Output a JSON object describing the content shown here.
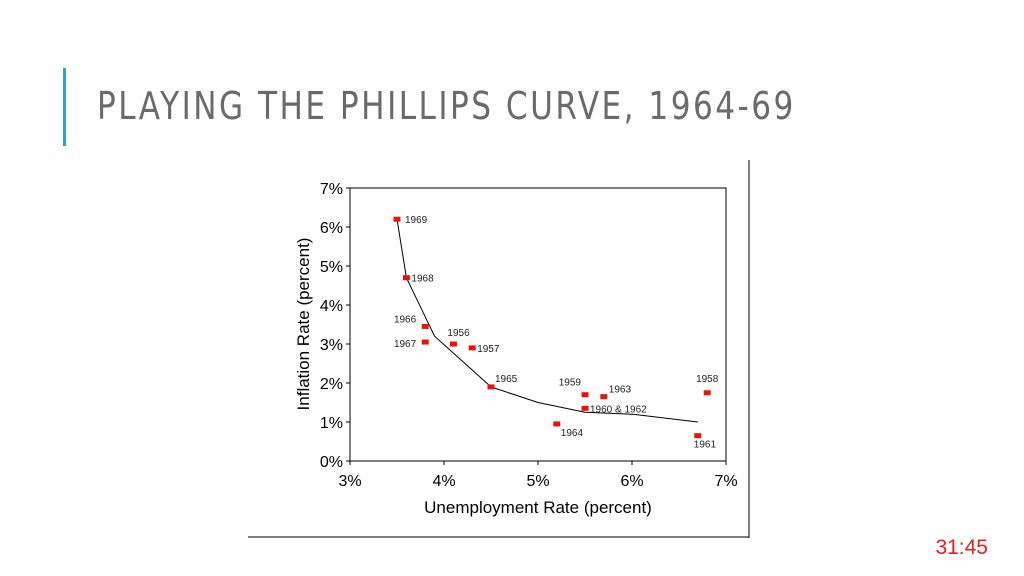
{
  "slide": {
    "title": "PLAYING THE PHILLIPS CURVE, 1964-69",
    "slide_number": "31:45",
    "accent_color": "#2ea3c6",
    "title_color": "#6a6a6a",
    "slide_number_color": "#e0201b"
  },
  "chart_data": {
    "type": "scatter",
    "xlabel": "Unemployment Rate (percent)",
    "ylabel": "Inflation Rate (percent)",
    "xlim": [
      3,
      7
    ],
    "ylim": [
      0,
      7
    ],
    "x_ticks": [
      "3%",
      "4%",
      "5%",
      "6%",
      "7%"
    ],
    "y_ticks": [
      "0%",
      "1%",
      "2%",
      "3%",
      "4%",
      "5%",
      "6%",
      "7%"
    ],
    "grid": false,
    "marker_color": "#e8140c",
    "curve_color": "#000000",
    "points": [
      {
        "label": "1969",
        "x": 3.5,
        "y": 6.2
      },
      {
        "label": "1968",
        "x": 3.6,
        "y": 4.7
      },
      {
        "label": "1966",
        "x": 3.8,
        "y": 3.45
      },
      {
        "label": "1967",
        "x": 3.8,
        "y": 3.05
      },
      {
        "label": "1956",
        "x": 4.1,
        "y": 3.0
      },
      {
        "label": "1957",
        "x": 4.3,
        "y": 2.9
      },
      {
        "label": "1965",
        "x": 4.5,
        "y": 1.9
      },
      {
        "label": "1959",
        "x": 5.5,
        "y": 1.7
      },
      {
        "label": "1963",
        "x": 5.7,
        "y": 1.65
      },
      {
        "label": "1958",
        "x": 6.8,
        "y": 1.75
      },
      {
        "label": "1960 & 1962",
        "x": 5.5,
        "y": 1.35
      },
      {
        "label": "1964",
        "x": 5.2,
        "y": 0.95
      },
      {
        "label": "1961",
        "x": 6.7,
        "y": 0.65
      }
    ],
    "curve": [
      {
        "x": 3.5,
        "y": 6.2
      },
      {
        "x": 3.6,
        "y": 4.7
      },
      {
        "x": 3.9,
        "y": 3.2
      },
      {
        "x": 4.5,
        "y": 1.9
      },
      {
        "x": 5.0,
        "y": 1.5
      },
      {
        "x": 5.5,
        "y": 1.25
      },
      {
        "x": 6.0,
        "y": 1.2
      },
      {
        "x": 6.7,
        "y": 1.0
      }
    ]
  }
}
